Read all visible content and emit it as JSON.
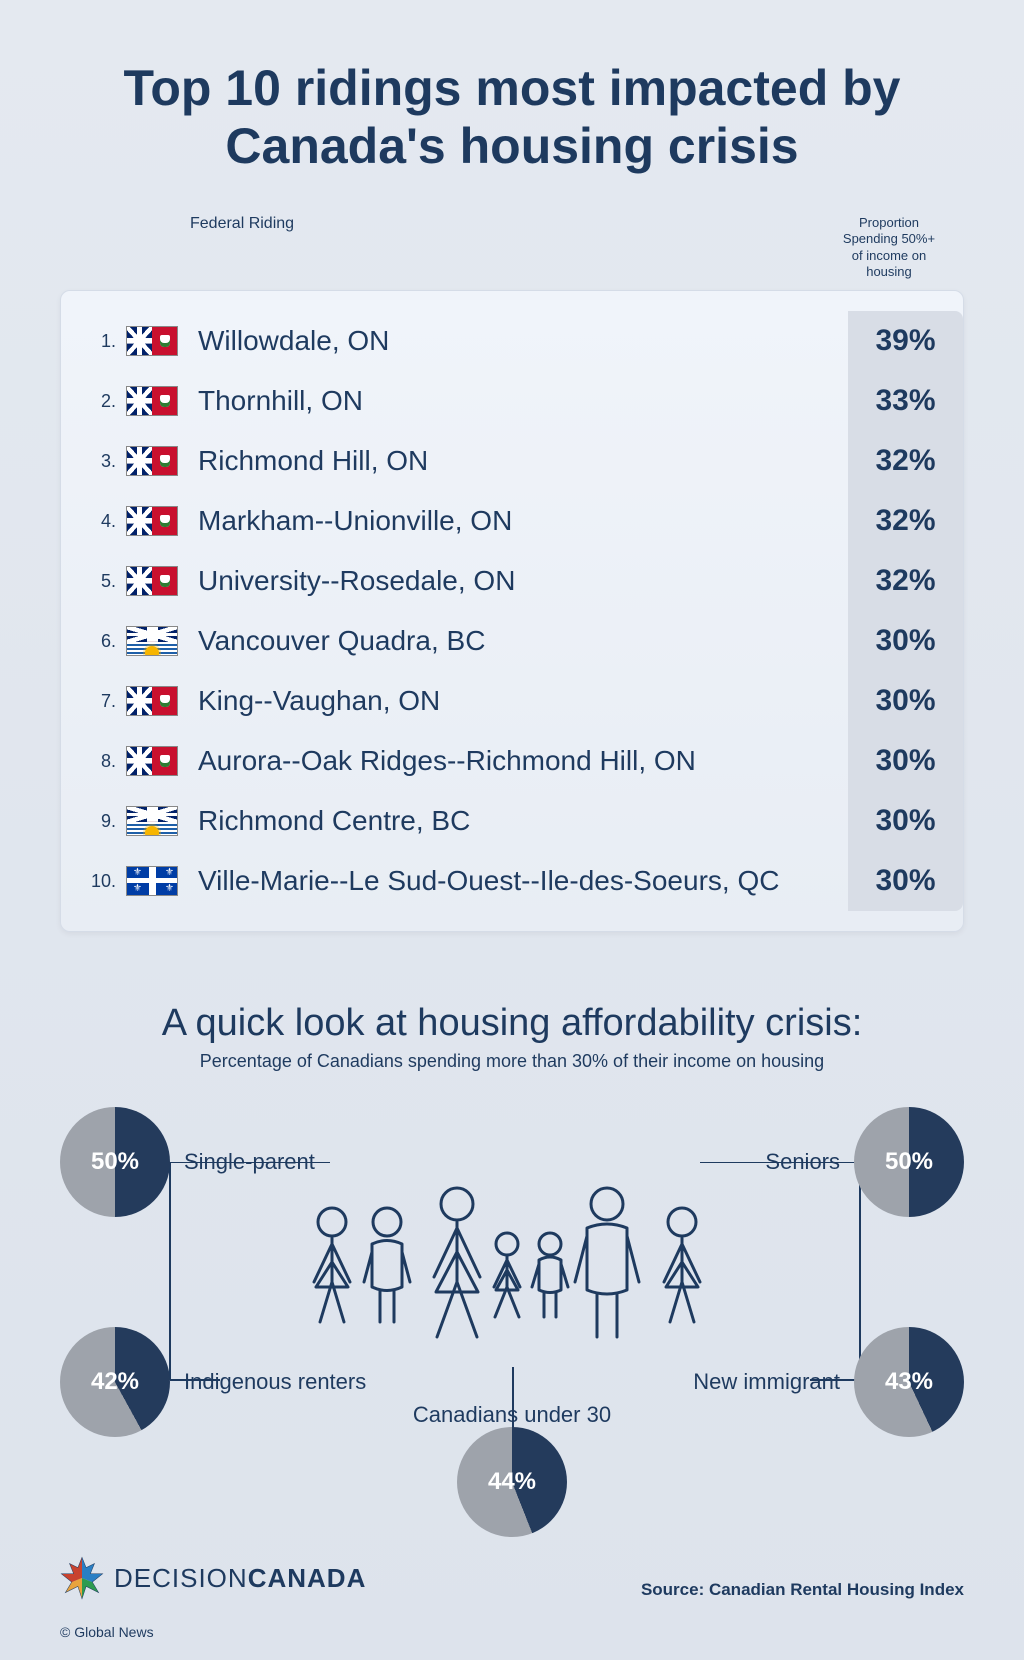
{
  "title": "Top 10 ridings most impacted by Canada's housing crisis",
  "headers": {
    "left": "Federal Riding",
    "right": "Proportion Spending 50%+ of income on housing"
  },
  "flags": {
    "on_color": "#c8102e",
    "bc_blue": "#1e5fa8",
    "qc_blue": "#003da5"
  },
  "ridings": [
    {
      "rank": "1.",
      "flag": "on",
      "name": "Willowdale, ON",
      "pct": "39%"
    },
    {
      "rank": "2.",
      "flag": "on",
      "name": "Thornhill, ON",
      "pct": "33%"
    },
    {
      "rank": "3.",
      "flag": "on",
      "name": "Richmond Hill, ON",
      "pct": "32%"
    },
    {
      "rank": "4.",
      "flag": "on",
      "name": "Markham--Unionville, ON",
      "pct": "32%"
    },
    {
      "rank": "5.",
      "flag": "on",
      "name": "University--Rosedale, ON",
      "pct": "32%"
    },
    {
      "rank": "6.",
      "flag": "bc",
      "name": "Vancouver Quadra, BC",
      "pct": "30%"
    },
    {
      "rank": "7.",
      "flag": "on",
      "name": "King--Vaughan, ON",
      "pct": "30%"
    },
    {
      "rank": "8.",
      "flag": "on",
      "name": "Aurora--Oak Ridges--Richmond Hill, ON",
      "pct": "30%"
    },
    {
      "rank": "9.",
      "flag": "bc",
      "name": "Richmond Centre, BC",
      "pct": "30%"
    },
    {
      "rank": "10.",
      "flag": "qc",
      "name": "Ville-Marie--Le Sud-Ouest--Ile-des-Soeurs, QC",
      "pct": "30%"
    }
  ],
  "section2": {
    "title": "A quick look at housing affordability crisis:",
    "desc": "Percentage of Canadians spending more than 30% of their income on housing",
    "pie_fill": "#243b5c",
    "pie_empty": "#9ea3ab",
    "groups": {
      "single_parent": {
        "label": "Single-parent",
        "value": 50,
        "text": "50%"
      },
      "seniors": {
        "label": "Seniors",
        "value": 50,
        "text": "50%"
      },
      "indigenous": {
        "label": "Indigenous renters",
        "value": 42,
        "text": "42%"
      },
      "under30": {
        "label": "Canadians under 30",
        "value": 44,
        "text": "44%"
      },
      "immigrant": {
        "label": "New immigrant",
        "value": 43,
        "text": "43%"
      }
    }
  },
  "footer": {
    "logo_light": "DECISION",
    "logo_bold": "CANADA",
    "source": "Source: Canadian Rental Housing Index",
    "copyright": "© Global News"
  },
  "colors": {
    "text": "#1e3a5f",
    "table_pct_bg": "#d8dde6",
    "body_bg_top": "#e4e9f0",
    "body_bg_bot": "#dde3ec"
  }
}
